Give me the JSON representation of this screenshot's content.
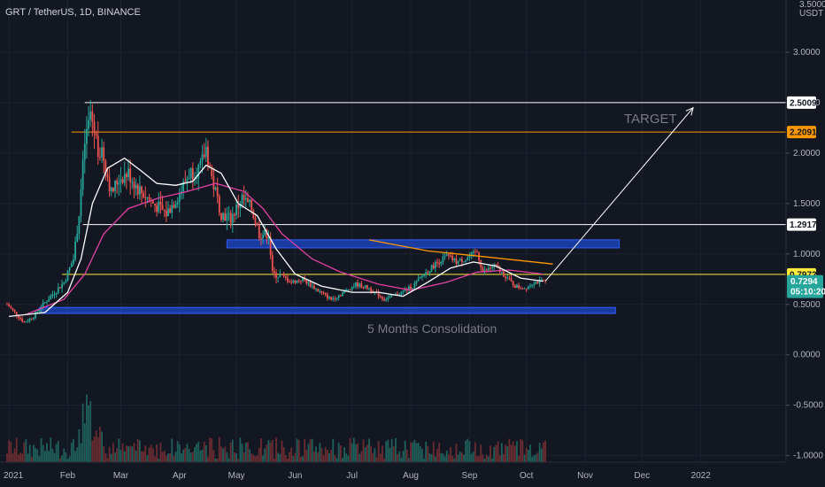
{
  "header": {
    "symbol_label": "GRT / TetherUS, 1D, BINANCE"
  },
  "axis": {
    "currency_top": "3.5000",
    "currency_unit": "USDT"
  },
  "annotations": {
    "target": "TARGET",
    "consolidation": "5 Months Consolidation"
  },
  "price_tags": {
    "res1": "2.5009",
    "res2": "2.2091",
    "res3": "1.2917",
    "support": "0.7972",
    "last": "0.7294",
    "countdown": "05:10:20"
  },
  "colors": {
    "background": "#131722",
    "grid": "#1e2230",
    "bull": "#26a69a",
    "bear": "#ef5350",
    "volume_bull": "#1f5f5a",
    "volume_bear": "#6b2c31",
    "ma_fast": "#ffffff",
    "ma_slow": "#e040a0",
    "level_white": "#ffffff",
    "level_orange": "#ff9800",
    "level_yellow": "#ffeb3b",
    "zone_blue": "#1e4bd6",
    "last_price": "#26a69a"
  },
  "chart_data": {
    "type": "candlestick",
    "title": "GRT / TetherUS, 1D, BINANCE",
    "y_ticks": [
      3.0,
      2.5,
      2.0,
      1.5,
      1.0,
      0.5,
      0.0,
      -0.5,
      -1.0
    ],
    "y_tick_labels": [
      "3.0000",
      "2.5000",
      "2.0000",
      "1.5000",
      "1.0000",
      "0.5000",
      "0.0000",
      "-0.5000",
      "-1.0000"
    ],
    "x_ticks": [
      "2021",
      "Feb",
      "Mar",
      "Apr",
      "May",
      "Jun",
      "Jul",
      "Aug",
      "Sep",
      "Oct",
      "Nov",
      "Dec",
      "2022"
    ],
    "x_tick_dates": [
      "2021-01-01",
      "2021-02-01",
      "2021-03-01",
      "2021-04-01",
      "2021-05-01",
      "2021-06-01",
      "2021-07-01",
      "2021-08-01",
      "2021-09-01",
      "2021-10-01",
      "2021-11-01",
      "2021-12-01",
      "2022-01-01"
    ],
    "x_range": [
      "2020-12-31",
      "2022-02-15"
    ],
    "ylim": [
      -1.1,
      3.5
    ],
    "horizontal_levels": [
      {
        "value": 2.5009,
        "color": "#ffffff",
        "from": "2021-02-10"
      },
      {
        "value": 2.2091,
        "color": "#ff9800",
        "from": "2021-02-03"
      },
      {
        "value": 1.2917,
        "color": "#ffffff",
        "from": "2021-02-09"
      },
      {
        "value": 0.7972,
        "color": "#ffeb3b",
        "from": "2021-01-29"
      }
    ],
    "zones": [
      {
        "from": "2021-04-26",
        "to": "2021-11-19",
        "low": 1.06,
        "high": 1.14
      },
      {
        "from": "2021-01-17",
        "to": "2021-11-17",
        "low": 0.41,
        "high": 0.47
      }
    ],
    "projection": {
      "from_date": "2021-10-11",
      "from_price": 0.73,
      "to_date": "2021-12-28",
      "to_price": 2.45
    },
    "price_path": [
      {
        "d": "2020-12-31",
        "p": 0.5
      },
      {
        "d": "2021-01-04",
        "p": 0.42
      },
      {
        "d": "2021-01-09",
        "p": 0.32
      },
      {
        "d": "2021-01-14",
        "p": 0.38
      },
      {
        "d": "2021-01-18",
        "p": 0.48
      },
      {
        "d": "2021-01-24",
        "p": 0.6
      },
      {
        "d": "2021-01-30",
        "p": 0.72
      },
      {
        "d": "2021-02-04",
        "p": 0.95
      },
      {
        "d": "2021-02-07",
        "p": 1.4
      },
      {
        "d": "2021-02-10",
        "p": 2.1
      },
      {
        "d": "2021-02-13",
        "p": 2.4
      },
      {
        "d": "2021-02-17",
        "p": 2.05
      },
      {
        "d": "2021-02-20",
        "p": 1.95
      },
      {
        "d": "2021-02-24",
        "p": 1.6
      },
      {
        "d": "2021-02-28",
        "p": 1.75
      },
      {
        "d": "2021-03-05",
        "p": 1.8
      },
      {
        "d": "2021-03-10",
        "p": 1.65
      },
      {
        "d": "2021-03-18",
        "p": 1.5
      },
      {
        "d": "2021-03-25",
        "p": 1.4
      },
      {
        "d": "2021-04-01",
        "p": 1.6
      },
      {
        "d": "2021-04-06",
        "p": 1.8
      },
      {
        "d": "2021-04-12",
        "p": 1.85
      },
      {
        "d": "2021-04-15",
        "p": 2.05
      },
      {
        "d": "2021-04-18",
        "p": 1.75
      },
      {
        "d": "2021-04-23",
        "p": 1.4
      },
      {
        "d": "2021-04-28",
        "p": 1.35
      },
      {
        "d": "2021-05-04",
        "p": 1.55
      },
      {
        "d": "2021-05-09",
        "p": 1.45
      },
      {
        "d": "2021-05-13",
        "p": 1.2
      },
      {
        "d": "2021-05-18",
        "p": 1.2
      },
      {
        "d": "2021-05-20",
        "p": 0.8
      },
      {
        "d": "2021-05-25",
        "p": 0.78
      },
      {
        "d": "2021-05-30",
        "p": 0.72
      },
      {
        "d": "2021-06-05",
        "p": 0.75
      },
      {
        "d": "2021-06-12",
        "p": 0.65
      },
      {
        "d": "2021-06-20",
        "p": 0.55
      },
      {
        "d": "2021-06-25",
        "p": 0.6
      },
      {
        "d": "2021-07-03",
        "p": 0.7
      },
      {
        "d": "2021-07-10",
        "p": 0.66
      },
      {
        "d": "2021-07-18",
        "p": 0.55
      },
      {
        "d": "2021-07-25",
        "p": 0.6
      },
      {
        "d": "2021-08-02",
        "p": 0.68
      },
      {
        "d": "2021-08-08",
        "p": 0.8
      },
      {
        "d": "2021-08-14",
        "p": 0.9
      },
      {
        "d": "2021-08-20",
        "p": 0.98
      },
      {
        "d": "2021-08-25",
        "p": 0.92
      },
      {
        "d": "2021-08-30",
        "p": 0.95
      },
      {
        "d": "2021-09-05",
        "p": 1.02
      },
      {
        "d": "2021-09-08",
        "p": 0.82
      },
      {
        "d": "2021-09-14",
        "p": 0.88
      },
      {
        "d": "2021-09-20",
        "p": 0.78
      },
      {
        "d": "2021-09-25",
        "p": 0.68
      },
      {
        "d": "2021-09-30",
        "p": 0.66
      },
      {
        "d": "2021-10-05",
        "p": 0.72
      },
      {
        "d": "2021-10-11",
        "p": 0.73
      }
    ],
    "ma_fast": [
      {
        "d": "2021-01-01",
        "p": 0.38
      },
      {
        "d": "2021-01-20",
        "p": 0.42
      },
      {
        "d": "2021-02-01",
        "p": 0.62
      },
      {
        "d": "2021-02-08",
        "p": 0.95
      },
      {
        "d": "2021-02-14",
        "p": 1.5
      },
      {
        "d": "2021-02-22",
        "p": 1.85
      },
      {
        "d": "2021-03-03",
        "p": 1.95
      },
      {
        "d": "2021-03-12",
        "p": 1.82
      },
      {
        "d": "2021-03-20",
        "p": 1.7
      },
      {
        "d": "2021-03-30",
        "p": 1.68
      },
      {
        "d": "2021-04-08",
        "p": 1.72
      },
      {
        "d": "2021-04-15",
        "p": 1.88
      },
      {
        "d": "2021-04-23",
        "p": 1.8
      },
      {
        "d": "2021-05-02",
        "p": 1.5
      },
      {
        "d": "2021-05-12",
        "p": 1.38
      },
      {
        "d": "2021-05-22",
        "p": 1.05
      },
      {
        "d": "2021-06-01",
        "p": 0.8
      },
      {
        "d": "2021-06-15",
        "p": 0.68
      },
      {
        "d": "2021-07-01",
        "p": 0.62
      },
      {
        "d": "2021-07-15",
        "p": 0.62
      },
      {
        "d": "2021-07-28",
        "p": 0.58
      },
      {
        "d": "2021-08-10",
        "p": 0.72
      },
      {
        "d": "2021-08-22",
        "p": 0.86
      },
      {
        "d": "2021-09-03",
        "p": 0.92
      },
      {
        "d": "2021-09-15",
        "p": 0.88
      },
      {
        "d": "2021-09-28",
        "p": 0.76
      },
      {
        "d": "2021-10-10",
        "p": 0.73
      }
    ],
    "ma_slow": [
      {
        "d": "2021-01-10",
        "p": 0.4
      },
      {
        "d": "2021-01-30",
        "p": 0.55
      },
      {
        "d": "2021-02-10",
        "p": 0.8
      },
      {
        "d": "2021-02-20",
        "p": 1.2
      },
      {
        "d": "2021-03-05",
        "p": 1.45
      },
      {
        "d": "2021-03-20",
        "p": 1.55
      },
      {
        "d": "2021-04-05",
        "p": 1.62
      },
      {
        "d": "2021-04-20",
        "p": 1.7
      },
      {
        "d": "2021-05-05",
        "p": 1.62
      },
      {
        "d": "2021-05-15",
        "p": 1.45
      },
      {
        "d": "2021-05-25",
        "p": 1.2
      },
      {
        "d": "2021-06-10",
        "p": 0.95
      },
      {
        "d": "2021-06-25",
        "p": 0.82
      },
      {
        "d": "2021-07-15",
        "p": 0.7
      },
      {
        "d": "2021-08-01",
        "p": 0.64
      },
      {
        "d": "2021-08-20",
        "p": 0.72
      },
      {
        "d": "2021-09-05",
        "p": 0.82
      },
      {
        "d": "2021-09-22",
        "p": 0.84
      },
      {
        "d": "2021-10-10",
        "p": 0.8
      }
    ],
    "ma_long": [
      {
        "d": "2021-07-10",
        "p": 1.14
      },
      {
        "d": "2021-08-10",
        "p": 1.03
      },
      {
        "d": "2021-09-10",
        "p": 0.97
      },
      {
        "d": "2021-10-15",
        "p": 0.9
      }
    ]
  }
}
